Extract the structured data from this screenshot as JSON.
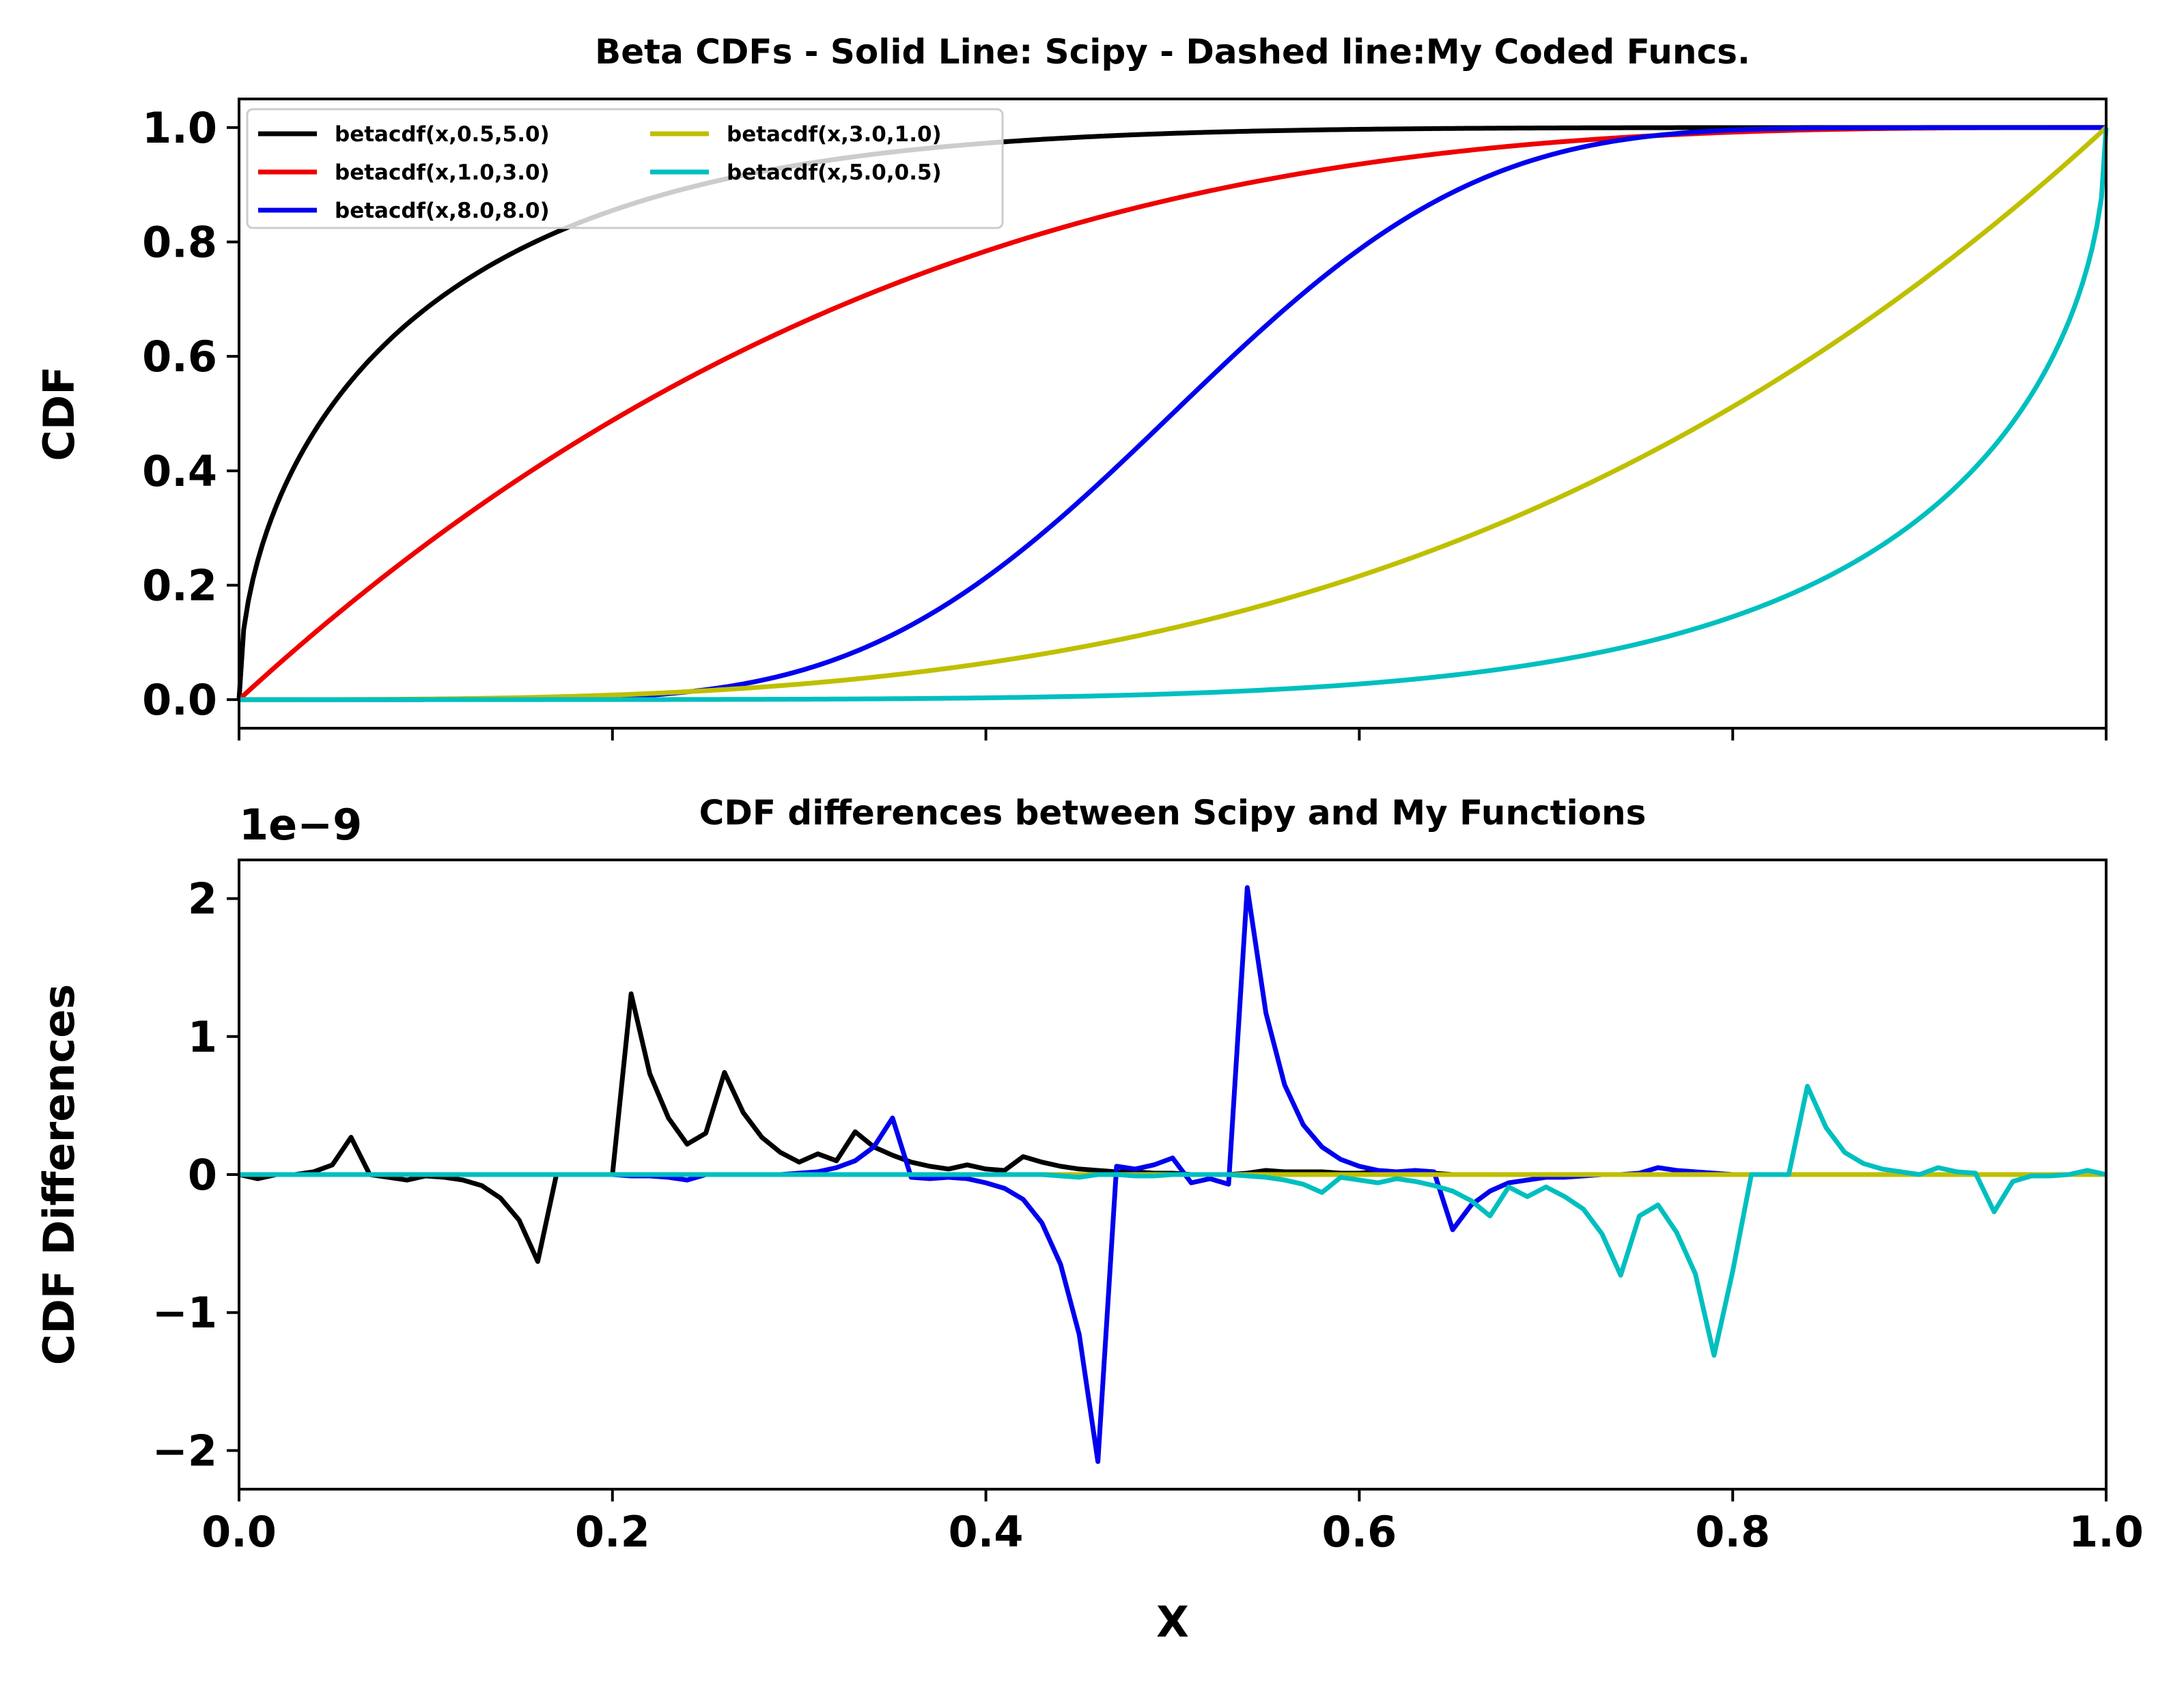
{
  "chart_data": [
    {
      "type": "line",
      "title": "Beta CDFs - Solid Line: Scipy - Dashed line:My Coded Funcs.",
      "xlabel": "",
      "ylabel": "CDF",
      "xlim": [
        0,
        1
      ],
      "ylim": [
        -0.05,
        1.05
      ],
      "yticks": [
        "0.0",
        "0.2",
        "0.4",
        "0.6",
        "0.8",
        "1.0"
      ],
      "xtick_labels_visible": false,
      "grid": false,
      "legend_placement": "upper-left",
      "legend_columns": 2,
      "series": [
        {
          "name": "betacdf(x,0.5,5.0)",
          "a": 0.5,
          "b": 5.0,
          "color": "#000000"
        },
        {
          "name": "betacdf(x,1.0,3.0)",
          "a": 1.0,
          "b": 3.0,
          "color": "#ee0000"
        },
        {
          "name": "betacdf(x,8.0,8.0)",
          "a": 8.0,
          "b": 8.0,
          "color": "#0000ee"
        },
        {
          "name": "betacdf(x,3.0,1.0)",
          "a": 3.0,
          "b": 1.0,
          "color": "#bfbf00"
        },
        {
          "name": "betacdf(x,5.0,0.5)",
          "a": 5.0,
          "b": 0.5,
          "color": "#00bfbf"
        }
      ]
    },
    {
      "type": "line",
      "title": "CDF differences between Scipy and My Functions",
      "xlabel": "X",
      "ylabel": "CDF Differences",
      "offset_label": "1e−9",
      "xlim": [
        0,
        1
      ],
      "ylim": [
        -2.28,
        2.28
      ],
      "yticks": [
        "−2",
        "−1",
        "0",
        "1",
        "2"
      ],
      "xticks": [
        "0.0",
        "0.2",
        "0.4",
        "0.6",
        "0.8",
        "1.0"
      ],
      "grid": false,
      "x": [
        0.0,
        0.01,
        0.02,
        0.03,
        0.04,
        0.05,
        0.06,
        0.07,
        0.08,
        0.09,
        0.1,
        0.11,
        0.12,
        0.13,
        0.14,
        0.15,
        0.16,
        0.17,
        0.18,
        0.19,
        0.2,
        0.21,
        0.22,
        0.23,
        0.24,
        0.25,
        0.26,
        0.27,
        0.28,
        0.29,
        0.3,
        0.31,
        0.32,
        0.33,
        0.34,
        0.35,
        0.36,
        0.37,
        0.38,
        0.39,
        0.4,
        0.41,
        0.42,
        0.43,
        0.44,
        0.45,
        0.46,
        0.47,
        0.48,
        0.49,
        0.5,
        0.51,
        0.52,
        0.53,
        0.54,
        0.55,
        0.56,
        0.57,
        0.58,
        0.59,
        0.6,
        0.61,
        0.62,
        0.63,
        0.64,
        0.65,
        0.66,
        0.67,
        0.68,
        0.69,
        0.7,
        0.71,
        0.72,
        0.73,
        0.74,
        0.75,
        0.76,
        0.77,
        0.78,
        0.79,
        0.8,
        0.81,
        0.82,
        0.83,
        0.84,
        0.85,
        0.86,
        0.87,
        0.88,
        0.89,
        0.9,
        0.91,
        0.92,
        0.93,
        0.94,
        0.95,
        0.96,
        0.97,
        0.98,
        0.99,
        1.0
      ],
      "series": [
        {
          "name": "betacdf(x,0.5,5.0)",
          "color": "#000000",
          "values": [
            0,
            -0.03,
            0,
            0,
            0.02,
            0.07,
            0.27,
            0,
            -0.02,
            -0.04,
            -0.01,
            -0.02,
            -0.04,
            -0.08,
            -0.17,
            -0.33,
            -0.63,
            0,
            0,
            0,
            0,
            1.31,
            0.73,
            0.41,
            0.22,
            0.3,
            0.74,
            0.45,
            0.27,
            0.16,
            0.09,
            0.15,
            0.1,
            0.31,
            0.2,
            0.14,
            0.09,
            0.06,
            0.04,
            0.07,
            0.04,
            0.03,
            0.13,
            0.09,
            0.06,
            0.04,
            0.03,
            0.02,
            0.02,
            0.01,
            0.01,
            0,
            0,
            0,
            0.01,
            0.03,
            0.02,
            0.02,
            0.02,
            0.01,
            0.01,
            0.02,
            0.01,
            0.01,
            0.01,
            0,
            0,
            0,
            0,
            0,
            0,
            0,
            0,
            0,
            0,
            0,
            0,
            0,
            0,
            0,
            0,
            0,
            0,
            0,
            0,
            0,
            0,
            0,
            0,
            0,
            0,
            0,
            0,
            0,
            0,
            0,
            0,
            0,
            0,
            0,
            0
          ]
        },
        {
          "name": "betacdf(x,1.0,3.0)",
          "color": "#ee0000",
          "values": [
            0,
            0,
            0,
            0,
            0,
            0,
            0,
            0,
            0,
            0,
            0,
            0,
            0,
            0,
            0,
            0,
            0,
            0,
            0,
            0,
            0,
            0,
            0,
            0,
            0,
            0,
            0,
            0,
            0,
            0,
            0,
            0,
            0,
            0,
            0,
            0,
            0,
            0,
            0,
            0,
            0,
            0,
            0,
            0,
            0,
            0,
            0,
            0,
            0,
            0,
            0,
            0,
            0,
            0,
            0,
            0,
            0,
            0,
            0,
            0,
            0,
            0,
            0,
            0,
            0,
            0,
            0,
            0,
            0,
            0,
            0,
            0,
            0,
            0,
            0,
            0,
            0,
            0,
            0,
            0,
            0,
            0,
            0,
            0,
            0,
            0,
            0,
            0,
            0,
            0,
            0,
            0,
            0,
            0,
            0,
            0,
            0,
            0,
            0,
            0,
            0
          ]
        },
        {
          "name": "betacdf(x,8.0,8.0)",
          "color": "#0000ee",
          "values": [
            0,
            0,
            0,
            0,
            0,
            0,
            0,
            0,
            0,
            0,
            0,
            0,
            0,
            0,
            0,
            0,
            0,
            0,
            0,
            0,
            0,
            -0.01,
            -0.01,
            -0.02,
            -0.04,
            0,
            0,
            0,
            0,
            0,
            0.01,
            0.02,
            0.05,
            0.1,
            0.2,
            0.41,
            -0.02,
            -0.03,
            -0.02,
            -0.03,
            -0.06,
            -0.1,
            -0.18,
            -0.35,
            -0.65,
            -1.16,
            -2.08,
            0.06,
            0.04,
            0.07,
            0.12,
            -0.06,
            -0.03,
            -0.07,
            2.08,
            1.17,
            0.65,
            0.36,
            0.2,
            0.11,
            0.06,
            0.03,
            0.02,
            0.03,
            0.02,
            -0.4,
            -0.22,
            -0.12,
            -0.06,
            -0.04,
            -0.02,
            -0.02,
            -0.01,
            0,
            0,
            0.01,
            0.05,
            0.03,
            0.02,
            0.01,
            0,
            0,
            0,
            0,
            0,
            0,
            0,
            0,
            0,
            0,
            0,
            0,
            0,
            0,
            0,
            0,
            0,
            0,
            0,
            0,
            0
          ]
        },
        {
          "name": "betacdf(x,3.0,1.0)",
          "color": "#bfbf00",
          "values": [
            0,
            0,
            0,
            0,
            0,
            0,
            0,
            0,
            0,
            0,
            0,
            0,
            0,
            0,
            0,
            0,
            0,
            0,
            0,
            0,
            0,
            0,
            0,
            0,
            0,
            0,
            0,
            0,
            0,
            0,
            0,
            0,
            0,
            0,
            0,
            0,
            0,
            0,
            0,
            0,
            0,
            0,
            0,
            0,
            0,
            0,
            0,
            0,
            0,
            0,
            0,
            0,
            0,
            0,
            0,
            0,
            0,
            0,
            0,
            0,
            0,
            0,
            0,
            0,
            0,
            0,
            0,
            0,
            0,
            0,
            0,
            0,
            0,
            0,
            0,
            0,
            0,
            0,
            0,
            0,
            0,
            0,
            0,
            0,
            0,
            0,
            0,
            0,
            0,
            0,
            0,
            0,
            0,
            0,
            0,
            0,
            0,
            0,
            0,
            0,
            0
          ]
        },
        {
          "name": "betacdf(x,5.0,0.5)",
          "color": "#00bfbf",
          "values": [
            0,
            0,
            0,
            0,
            0,
            0,
            0,
            0,
            0,
            0,
            0,
            0,
            0,
            0,
            0,
            0,
            0,
            0,
            0,
            0,
            0,
            0,
            0,
            0,
            0,
            0,
            0,
            0,
            0,
            0,
            0,
            0,
            0,
            0,
            0,
            0,
            0,
            0,
            0,
            0,
            0,
            0,
            0,
            0,
            -0.01,
            -0.02,
            0,
            0,
            -0.01,
            -0.01,
            0,
            0,
            0,
            0,
            -0.01,
            -0.02,
            -0.04,
            -0.07,
            -0.13,
            -0.02,
            -0.04,
            -0.06,
            -0.03,
            -0.05,
            -0.08,
            -0.12,
            -0.19,
            -0.3,
            -0.09,
            -0.16,
            -0.09,
            -0.16,
            -0.25,
            -0.43,
            -0.73,
            -0.3,
            -0.22,
            -0.42,
            -0.72,
            -1.31,
            -0.7,
            0,
            0,
            0,
            0.64,
            0.34,
            0.16,
            0.08,
            0.04,
            0.02,
            0,
            0.05,
            0.02,
            0.01,
            -0.27,
            -0.05,
            -0.01,
            -0.01,
            0,
            0.03,
            0
          ]
        }
      ]
    }
  ]
}
